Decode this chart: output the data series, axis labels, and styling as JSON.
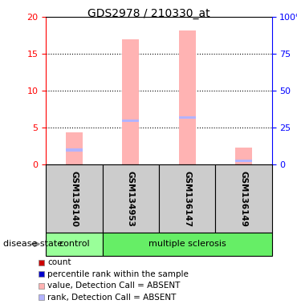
{
  "title": "GDS2978 / 210330_at",
  "samples": [
    "GSM136140",
    "GSM134953",
    "GSM136147",
    "GSM136149"
  ],
  "groups": [
    "control",
    "multiple sclerosis",
    "multiple sclerosis",
    "multiple sclerosis"
  ],
  "value_absent": [
    4.4,
    17.0,
    18.2,
    2.3
  ],
  "rank_absent": [
    2.0,
    6.0,
    6.4,
    0.5
  ],
  "ylim_left": [
    0,
    20
  ],
  "ylim_right": [
    0,
    100
  ],
  "yticks_left": [
    0,
    5,
    10,
    15,
    20
  ],
  "yticks_right": [
    0,
    25,
    50,
    75,
    100
  ],
  "ytick_labels_right": [
    "0",
    "25",
    "50",
    "75",
    "100%"
  ],
  "color_value_absent": "#ffb3b3",
  "color_rank_absent": "#b3b3ff",
  "color_count": "#cc0000",
  "color_rank_line": "#0000cc",
  "group_colors": {
    "control": "#99ff99",
    "multiple sclerosis": "#66ee66"
  },
  "legend_items": [
    {
      "color": "#cc0000",
      "label": "count"
    },
    {
      "color": "#0000cc",
      "label": "percentile rank within the sample"
    },
    {
      "color": "#ffb3b3",
      "label": "value, Detection Call = ABSENT"
    },
    {
      "color": "#b3b3ff",
      "label": "rank, Detection Call = ABSENT"
    }
  ],
  "disease_state_label": "disease state",
  "bar_width": 0.3,
  "background_color": "#ffffff"
}
